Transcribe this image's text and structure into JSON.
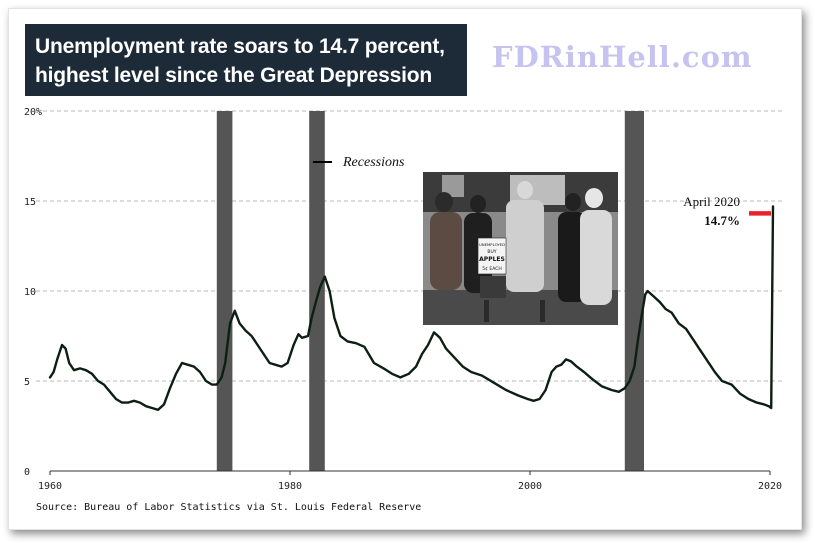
{
  "header": {
    "title_line1": "Unemployment rate soars to 14.7 percent,",
    "title_line2": "highest level since the Great Depression",
    "watermark": "FDRinHell.com"
  },
  "source_note": "Source: Bureau of Labor Statistics via St. Louis Federal Reserve",
  "photo": {
    "sign_lines": [
      "UNEMPLOYED",
      "BUY",
      "APPLES",
      "5¢ EACH"
    ]
  },
  "colors": {
    "line": "#0d1f12",
    "recession": "#555555",
    "marker": "#e8232d",
    "title_bg": "#1d2a38",
    "watermark": "#c7c3f0"
  },
  "chart_data": {
    "type": "line",
    "xlim": [
      1960,
      2020
    ],
    "ylim": [
      0,
      20
    ],
    "xticks": [
      "1960",
      "1980",
      "2000",
      "2020"
    ],
    "yticks": [
      "0",
      "5",
      "10",
      "15",
      "20%"
    ],
    "grid": "horizontal dashed",
    "legend": {
      "label": "Recessions",
      "placement": "top-center"
    },
    "recessions": [
      [
        1973.9,
        1975.2
      ],
      [
        1981.6,
        1982.9
      ],
      [
        2007.9,
        2009.5
      ]
    ],
    "annotation": {
      "line1": "April 2020",
      "line2": "14.7%",
      "x": 2020.25,
      "y": 14.7
    },
    "series": [
      {
        "x": [
          1960.0,
          1960.3,
          1960.6,
          1961.0,
          1961.3,
          1961.6,
          1962.0,
          1962.5,
          1963.0,
          1963.5,
          1964.0,
          1964.5,
          1965.0,
          1965.5,
          1966.0,
          1966.5,
          1967.0,
          1967.5,
          1968.0,
          1968.5,
          1969.0,
          1969.5,
          1970.0,
          1970.5,
          1971.0,
          1971.5,
          1972.0,
          1972.5,
          1973.0,
          1973.5,
          1973.9,
          1974.3,
          1974.6,
          1975.0,
          1975.4,
          1975.8,
          1976.3,
          1976.8,
          1977.3,
          1977.8,
          1978.3,
          1978.8,
          1979.3,
          1979.8,
          1980.3,
          1980.7,
          1981.0,
          1981.5,
          1981.8,
          1982.2,
          1982.5,
          1982.9,
          1983.3,
          1983.7,
          1984.2,
          1984.8,
          1985.5,
          1986.2,
          1987.0,
          1987.8,
          1988.5,
          1989.2,
          1989.9,
          1990.5,
          1991.0,
          1991.5,
          1992.0,
          1992.5,
          1993.0,
          1993.7,
          1994.4,
          1995.1,
          1996.0,
          1997.0,
          1998.0,
          1999.0,
          1999.8,
          2000.3,
          2000.8,
          2001.3,
          2001.8,
          2002.2,
          2002.6,
          2003.0,
          2003.4,
          2003.9,
          2004.5,
          2005.2,
          2006.0,
          2006.8,
          2007.4,
          2007.9,
          2008.3,
          2008.7,
          2009.0,
          2009.3,
          2009.6,
          2009.8,
          2010.3,
          2010.8,
          2011.3,
          2011.8,
          2012.4,
          2013.0,
          2013.6,
          2014.2,
          2014.8,
          2015.4,
          2016.0,
          2016.8,
          2017.5,
          2018.2,
          2018.9,
          2019.5,
          2019.9,
          2020.1,
          2020.25
        ],
        "values": [
          5.2,
          5.5,
          6.2,
          7.0,
          6.8,
          6.0,
          5.6,
          5.7,
          5.6,
          5.4,
          5.0,
          4.8,
          4.4,
          4.0,
          3.8,
          3.8,
          3.9,
          3.8,
          3.6,
          3.5,
          3.4,
          3.7,
          4.6,
          5.4,
          6.0,
          5.9,
          5.8,
          5.5,
          5.0,
          4.8,
          4.8,
          5.2,
          6.0,
          8.2,
          8.9,
          8.2,
          7.8,
          7.5,
          7.0,
          6.5,
          6.0,
          5.9,
          5.8,
          6.0,
          7.0,
          7.6,
          7.4,
          7.5,
          8.5,
          9.5,
          10.2,
          10.8,
          10.0,
          8.5,
          7.5,
          7.2,
          7.1,
          6.9,
          6.0,
          5.7,
          5.4,
          5.2,
          5.4,
          5.8,
          6.5,
          7.0,
          7.7,
          7.4,
          6.8,
          6.3,
          5.8,
          5.5,
          5.3,
          4.9,
          4.5,
          4.2,
          4.0,
          3.9,
          4.0,
          4.5,
          5.5,
          5.8,
          5.9,
          6.2,
          6.1,
          5.8,
          5.5,
          5.1,
          4.7,
          4.5,
          4.4,
          4.6,
          5.0,
          5.8,
          7.3,
          8.6,
          9.8,
          10.0,
          9.7,
          9.4,
          9.0,
          8.8,
          8.2,
          7.9,
          7.3,
          6.7,
          6.1,
          5.5,
          5.0,
          4.8,
          4.3,
          4.0,
          3.8,
          3.7,
          3.6,
          3.5,
          14.7
        ]
      }
    ]
  }
}
